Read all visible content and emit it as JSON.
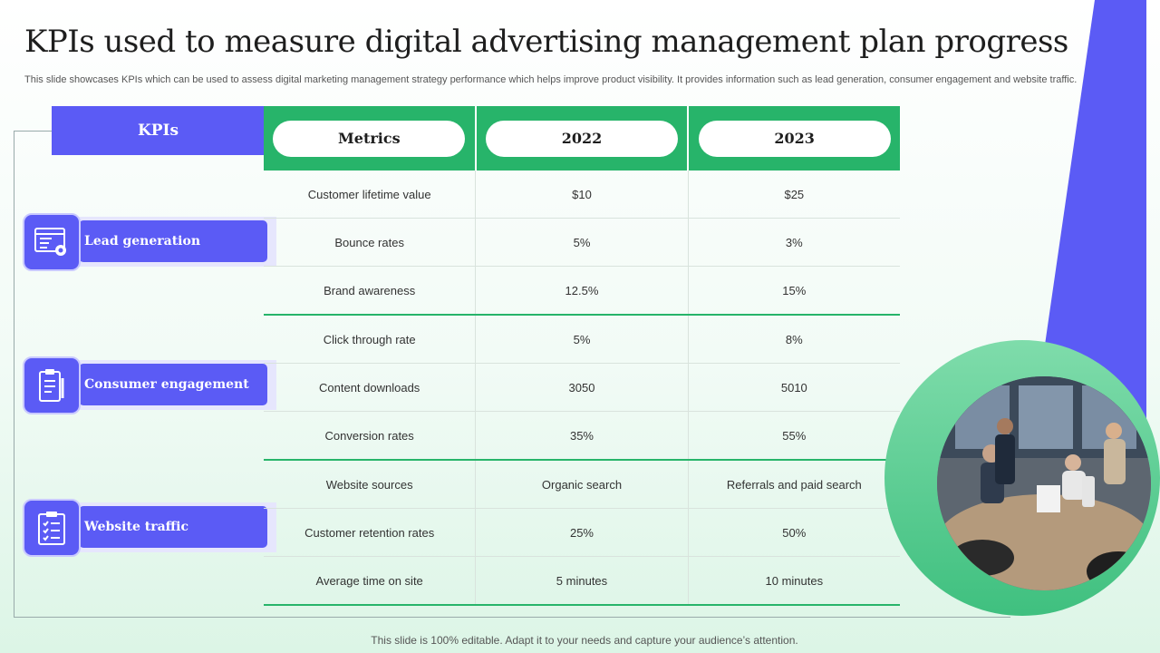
{
  "slide": {
    "title": "KPIs used to measure digital advertising management plan progress",
    "subtitle": "This slide showcases KPIs which can be used to assess digital marketing management strategy performance which helps improve product visibility. It provides information such as lead generation, consumer engagement and website traffic.",
    "footer": "This slide is 100% editable. Adapt it to your needs and capture your audience’s attention."
  },
  "kpis": {
    "header": "KPIs",
    "items": [
      {
        "label": "Lead generation",
        "icon": "monitor-gear-icon"
      },
      {
        "label": "Consumer engagement",
        "icon": "clipboard-pen-icon"
      },
      {
        "label": "Website traffic",
        "icon": "checklist-icon"
      }
    ]
  },
  "table": {
    "headers": [
      "Metrics",
      "2022",
      "2023"
    ],
    "rows": [
      [
        "Customer lifetime value",
        "$10",
        "$25"
      ],
      [
        "Bounce rates",
        "5%",
        "3%"
      ],
      [
        "Brand awareness",
        "12.5%",
        "15%"
      ],
      [
        "Click through rate",
        "5%",
        "8%"
      ],
      [
        "Content downloads",
        "3050",
        "5010"
      ],
      [
        "Conversion  rates",
        "35%",
        "55%"
      ],
      [
        "Website sources",
        "Organic search",
        "Referrals  and paid search"
      ],
      [
        "Customer retention rates",
        "25%",
        "50%"
      ],
      [
        "Average  time on site",
        "5 minutes",
        "10 minutes"
      ]
    ]
  },
  "colors": {
    "accent_purple": "#5b5bf5",
    "accent_green": "#27b46a"
  }
}
